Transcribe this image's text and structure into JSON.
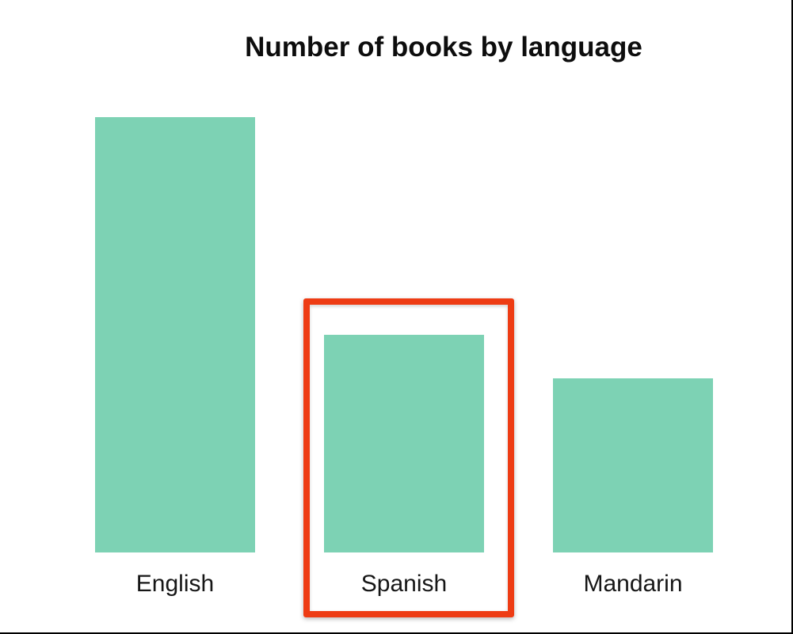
{
  "chart_data": {
    "type": "bar",
    "title": "Number of books by language",
    "categories": [
      "English",
      "Spanish",
      "Mandarin"
    ],
    "values": [
      100,
      50,
      40
    ],
    "xlabel": "",
    "ylabel": "",
    "ylim": [
      0,
      100
    ],
    "grid": false,
    "axes_shown": false,
    "legend_position": "none",
    "bar_color": "#7dd2b4",
    "title_color": "#0d0d0d",
    "label_color": "#161616",
    "values_note": "no y-axis shown; values estimated from relative bar heights (550px : 275px : 220px)"
  },
  "annotation": {
    "type": "highlight-box",
    "target_category": "Spanish",
    "border_color": "#ee3c14"
  },
  "page": {
    "background": "#ffffff",
    "edge_border_color": "#000000"
  }
}
